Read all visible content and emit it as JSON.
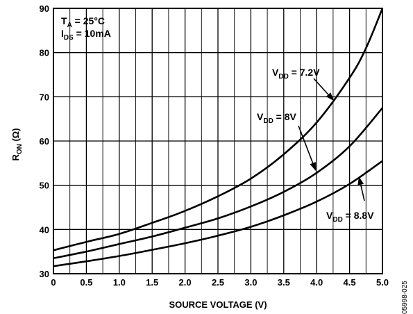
{
  "chart_data": {
    "type": "line",
    "xlabel": "SOURCE VOLTAGE (V)",
    "ylabel": {
      "main": "R",
      "sub": "ON",
      "rest": " (Ω)"
    },
    "xlim": [
      0,
      5
    ],
    "ylim": [
      30,
      90
    ],
    "x_ticks": [
      "0",
      "0.5",
      "1.0",
      "1.5",
      "2.0",
      "2.5",
      "3.0",
      "3.5",
      "4.0",
      "4.5",
      "5.0"
    ],
    "y_ticks": [
      "30",
      "40",
      "50",
      "60",
      "70",
      "80",
      "90"
    ],
    "grid": true,
    "conditions": [
      {
        "main": "T",
        "sub": "A",
        "rest": " = 25°C"
      },
      {
        "main": "I",
        "sub": "DS",
        "rest": " = 10mA"
      }
    ],
    "series": [
      {
        "label": {
          "main": "V",
          "sub": "DD",
          "rest": " = 7.2V"
        },
        "x": [
          0,
          0.5,
          1.0,
          1.5,
          2.0,
          2.5,
          3.0,
          3.5,
          4.0,
          4.5,
          4.75,
          5.0
        ],
        "y": [
          35.3,
          37.2,
          39.0,
          41.5,
          44.2,
          47.5,
          51.5,
          57.0,
          64.2,
          74.3,
          81.0,
          90.0
        ]
      },
      {
        "label": {
          "main": "V",
          "sub": "DD",
          "rest": " = 8V"
        },
        "x": [
          0,
          0.5,
          1.0,
          1.5,
          2.0,
          2.5,
          3.0,
          3.5,
          4.0,
          4.5,
          5.0
        ],
        "y": [
          33.5,
          35.0,
          36.7,
          38.4,
          40.4,
          42.5,
          45.2,
          48.5,
          52.8,
          58.8,
          67.5
        ]
      },
      {
        "label": {
          "main": "V",
          "sub": "DD",
          "rest": " = 8.8V"
        },
        "x": [
          0,
          0.5,
          1.0,
          1.5,
          2.0,
          2.5,
          3.0,
          3.5,
          4.0,
          4.5,
          5.0
        ],
        "y": [
          31.7,
          32.8,
          34.0,
          35.4,
          36.9,
          38.6,
          40.6,
          43.2,
          46.3,
          50.3,
          55.5
        ]
      }
    ],
    "figure_id": "05998-025"
  }
}
